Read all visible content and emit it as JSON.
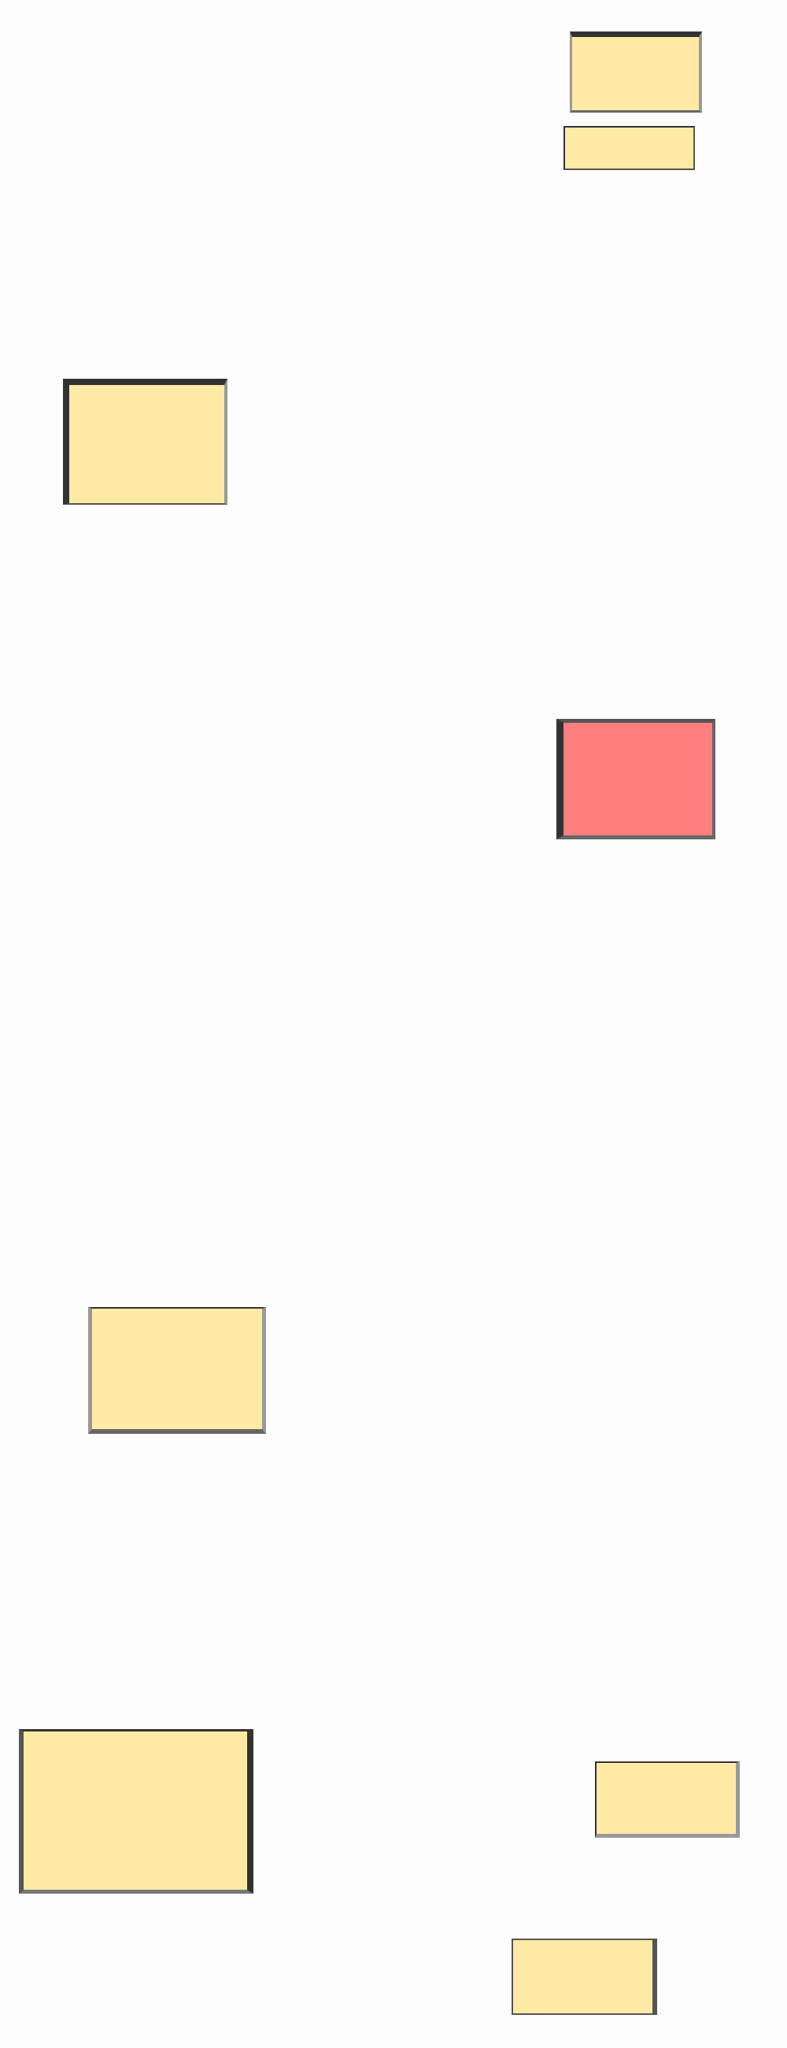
{
  "colors": {
    "background": "#fdfdfd",
    "box_fill_default": "#ffeaa5",
    "box_fill_highlight": "#ff7f7f",
    "border_dark": "#333333",
    "border_mid": "#555555",
    "border_light": "#999999"
  },
  "boxes": [
    {
      "name": "box-1",
      "label": "",
      "state": "default"
    },
    {
      "name": "box-2",
      "label": "",
      "state": "default"
    },
    {
      "name": "box-3",
      "label": "",
      "state": "default"
    },
    {
      "name": "box-4",
      "label": "",
      "state": "highlighted"
    },
    {
      "name": "box-5",
      "label": "",
      "state": "default"
    },
    {
      "name": "box-6",
      "label": "",
      "state": "default"
    },
    {
      "name": "box-7",
      "label": "",
      "state": "default"
    },
    {
      "name": "box-8",
      "label": "",
      "state": "default"
    }
  ]
}
